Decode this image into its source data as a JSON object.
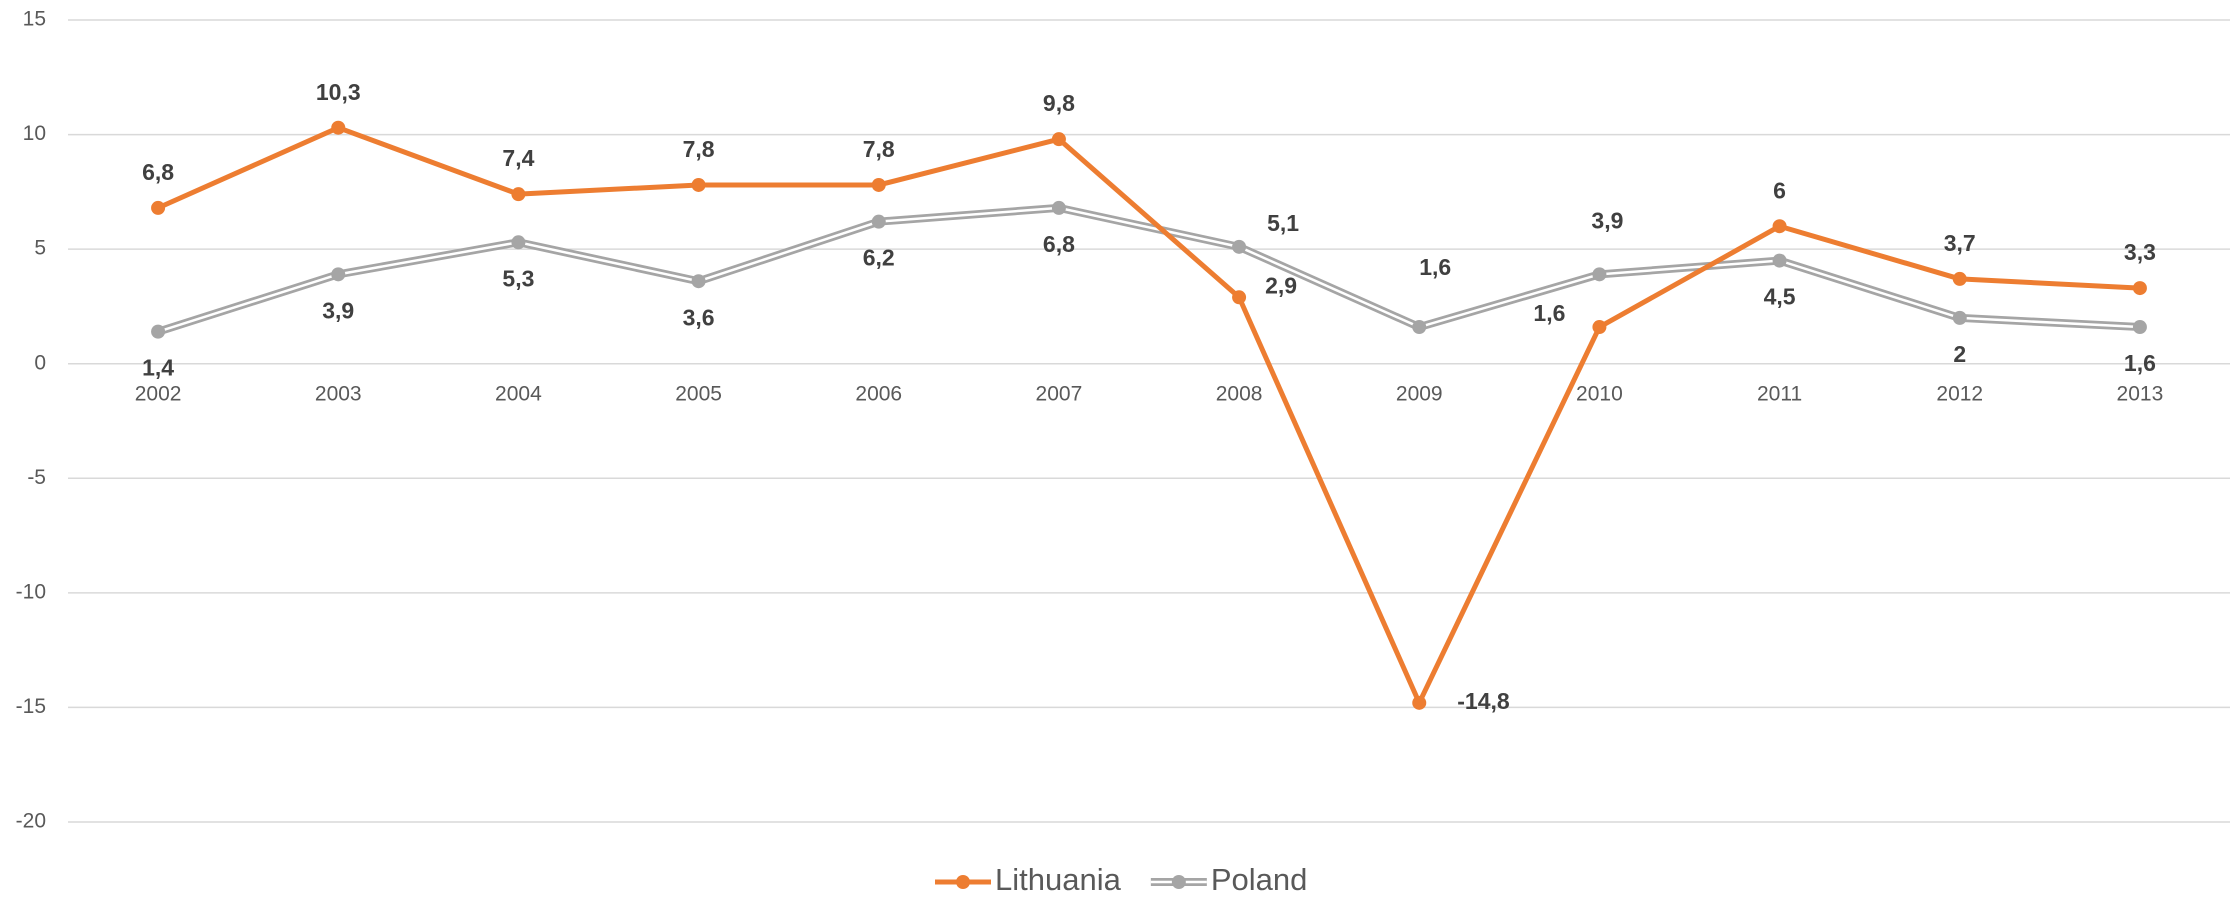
{
  "chart_data": {
    "type": "line",
    "categories": [
      "2002",
      "2003",
      "2004",
      "2005",
      "2006",
      "2007",
      "2008",
      "2009",
      "2010",
      "2011",
      "2012",
      "2013"
    ],
    "series": [
      {
        "name": "Lithuania",
        "color": "#ed7d31",
        "values": [
          6.8,
          10.3,
          7.4,
          7.8,
          7.8,
          9.8,
          2.9,
          -14.8,
          1.6,
          6,
          3.7,
          3.3
        ],
        "value_labels": [
          "6,8",
          "10,3",
          "7,4",
          "7,8",
          "7,8",
          "9,8",
          "2,9",
          "-14,8",
          "1,6",
          "6",
          "3,7",
          "3,3"
        ]
      },
      {
        "name": "Poland",
        "color": "#a5a5a5",
        "values": [
          1.4,
          3.9,
          5.3,
          3.6,
          6.2,
          6.8,
          5.1,
          1.6,
          3.9,
          4.5,
          2,
          1.6
        ],
        "value_labels": [
          "1,4",
          "3,9",
          "5,3",
          "3,6",
          "6,2",
          "6,8",
          "5,1",
          "1,6",
          "3,9",
          "4,5",
          "2",
          "1,6"
        ]
      }
    ],
    "ylim": [
      -20,
      15
    ],
    "yticks": [
      15,
      10,
      5,
      0,
      -5,
      -10,
      -15,
      -20
    ],
    "grid": true,
    "legend": "bottom"
  }
}
